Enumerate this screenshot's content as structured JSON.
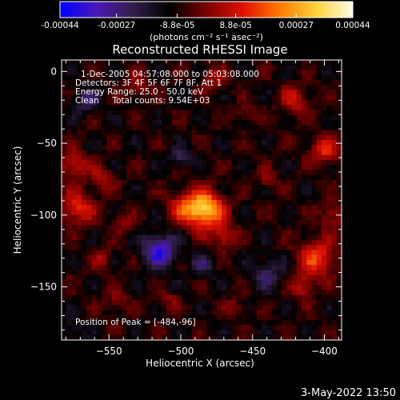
{
  "timestamp": "3-May-2022 13:50",
  "colorbar": {
    "tick_labels": [
      "-0.00044",
      "-0.00027",
      "-8.8e-05",
      "8.8e-05",
      "0.00027",
      "0.00044"
    ],
    "tick_values": [
      -0.00044,
      -0.00027,
      -8.8e-05,
      8.8e-05,
      0.00027,
      0.00044
    ],
    "range": [
      -0.00044,
      0.00044
    ],
    "unit_label": "(photons cm⁻² s⁻¹ asec⁻²)"
  },
  "chart_data": {
    "type": "heatmap",
    "title": "Reconstructed RHESSI Image",
    "xlabel": "Heliocentric X (arcsec)",
    "ylabel": "Heliocentric Y (arcsec)",
    "xlim": [
      -583,
      -388
    ],
    "ylim": [
      -187,
      8
    ],
    "xticks": [
      -550,
      -500,
      -450,
      -400
    ],
    "yticks": [
      0,
      -50,
      -100,
      -150
    ],
    "xtick_labels": [
      "−550",
      "−500",
      "−450",
      "−400"
    ],
    "ytick_labels": [
      "0",
      "−50",
      "−100",
      "−150"
    ],
    "annotations": [
      "1-Dec-2005 04:57:08.000 to 05:03:08.000",
      "Detectors: 3F 4F 5F 6F 7F 8F, Att 1",
      "Energy Range: 25.0 - 50.0 keV",
      "Clean     Total counts: 9.54E+03"
    ],
    "peak_label": "Position of Peak = [-484,-96]",
    "peak": [
      -484,
      -96
    ],
    "colormap": [
      "#0000ff",
      "#4a18b8",
      "#321f48",
      "#000000",
      "#7a0000",
      "#e01000",
      "#ff7a00",
      "#ffd23c",
      "#ffffe6"
    ],
    "sources": [
      {
        "x": -484,
        "y": -96,
        "sigma": 9,
        "peak": 0.00044
      },
      {
        "x": -470,
        "y": -115,
        "sigma": 6,
        "peak": 0.00018
      },
      {
        "x": -500,
        "y": -95,
        "sigma": 7,
        "peak": 0.00015
      },
      {
        "x": -572,
        "y": -95,
        "sigma": 8,
        "peak": 0.00022
      },
      {
        "x": -575,
        "y": -65,
        "sigma": 7,
        "peak": 0.00018
      },
      {
        "x": -555,
        "y": -75,
        "sigma": 6,
        "peak": 0.00014
      },
      {
        "x": -540,
        "y": -105,
        "sigma": 5,
        "peak": 0.00012
      },
      {
        "x": -555,
        "y": -130,
        "sigma": 5,
        "peak": 0.00012
      },
      {
        "x": -405,
        "y": -130,
        "sigma": 9,
        "peak": 0.00024
      },
      {
        "x": -400,
        "y": -55,
        "sigma": 7,
        "peak": 0.0002
      },
      {
        "x": -420,
        "y": -20,
        "sigma": 7,
        "peak": 0.00016
      },
      {
        "x": -395,
        "y": -100,
        "sigma": 6,
        "peak": 0.00014
      },
      {
        "x": -415,
        "y": -150,
        "sigma": 6,
        "peak": 0.00016
      },
      {
        "x": -440,
        "y": -75,
        "sigma": 5,
        "peak": 0.0001
      },
      {
        "x": -530,
        "y": -10,
        "sigma": 6,
        "peak": 0.00012
      },
      {
        "x": -478,
        "y": -5,
        "sigma": 6,
        "peak": 0.00012
      },
      {
        "x": -455,
        "y": -30,
        "sigma": 5,
        "peak": 0.0001
      },
      {
        "x": -545,
        "y": -160,
        "sigma": 6,
        "peak": 0.0001
      },
      {
        "x": -462,
        "y": -165,
        "sigma": 5,
        "peak": 0.0001
      },
      {
        "x": -508,
        "y": -160,
        "sigma": 5,
        "peak": 9e-05
      },
      {
        "x": -515,
        "y": -125,
        "sigma": 8,
        "peak": -0.00028
      },
      {
        "x": -565,
        "y": -20,
        "sigma": 6,
        "peak": -0.00016
      },
      {
        "x": -500,
        "y": -60,
        "sigma": 5,
        "peak": -0.00014
      },
      {
        "x": -440,
        "y": -140,
        "sigma": 8,
        "peak": -0.00014
      },
      {
        "x": -485,
        "y": -135,
        "sigma": 6,
        "peak": -0.00012
      },
      {
        "x": -575,
        "y": -180,
        "sigma": 5,
        "peak": -0.0001
      }
    ]
  }
}
